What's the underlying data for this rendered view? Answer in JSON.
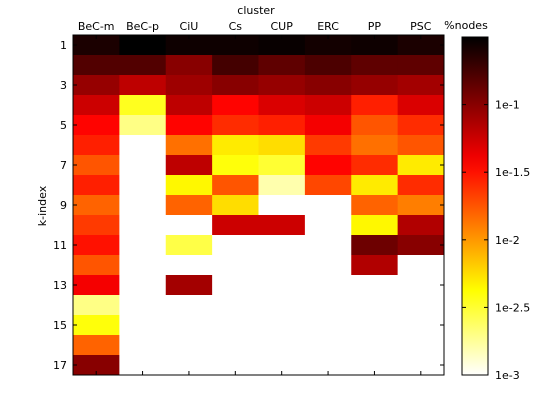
{
  "chart_data": {
    "type": "heatmap",
    "title": "cluster",
    "xlabel": "",
    "ylabel": "k-index",
    "colorbar_label": "%nodes",
    "categories": [
      "BeC-m",
      "BeC-p",
      "CiU",
      "Cs",
      "CUP",
      "ERC",
      "PP",
      "PSC"
    ],
    "y_rows": [
      1,
      2,
      3,
      4,
      5,
      6,
      7,
      8,
      9,
      10,
      11,
      12,
      13,
      14,
      15,
      16,
      17
    ],
    "y_tick_labels": [
      "1",
      "3",
      "5",
      "7",
      "9",
      "11",
      "13",
      "15",
      "17"
    ],
    "colorbar_ticks": [
      "1e-3",
      "1e-2.5",
      "1e-2",
      "1e-1.5",
      "1e-1"
    ],
    "colorbar_range_log10": [
      -3,
      -0.5
    ],
    "colormap": "hot (reversed)",
    "missing_color": "#ffffff",
    "grid": false,
    "matrix_log10": [
      [
        -0.6,
        -0.5,
        -0.55,
        -0.55,
        -0.53,
        -0.57,
        -0.55,
        -0.6
      ],
      [
        -0.8,
        -0.8,
        -1.0,
        -0.75,
        -0.85,
        -0.78,
        -0.85,
        -0.85
      ],
      [
        -1.05,
        -1.2,
        -1.08,
        -1.0,
        -1.05,
        -1.0,
        -1.05,
        -1.1
      ],
      [
        -1.25,
        -2.45,
        -1.2,
        -1.45,
        -1.3,
        -1.25,
        -1.55,
        -1.3
      ],
      [
        -1.45,
        -2.7,
        -1.45,
        -1.6,
        -1.55,
        -1.4,
        -1.75,
        -1.6
      ],
      [
        -1.55,
        null,
        -1.85,
        -2.3,
        -2.25,
        -1.65,
        -1.85,
        -1.75
      ],
      [
        -1.75,
        null,
        -1.2,
        -2.4,
        -2.5,
        -1.45,
        -1.6,
        -2.3
      ],
      [
        -1.55,
        null,
        -2.35,
        -1.75,
        -2.8,
        -1.7,
        -2.3,
        -1.6
      ],
      [
        -1.8,
        null,
        -1.8,
        -2.25,
        null,
        null,
        -1.8,
        -1.9
      ],
      [
        -1.65,
        null,
        null,
        -1.25,
        -1.25,
        null,
        -2.35,
        -1.15
      ],
      [
        -1.5,
        null,
        -2.55,
        null,
        null,
        null,
        -0.9,
        -1.0
      ],
      [
        -1.75,
        null,
        null,
        null,
        null,
        null,
        -1.15,
        null
      ],
      [
        -1.4,
        null,
        -1.1,
        null,
        null,
        null,
        null,
        null
      ],
      [
        -2.7,
        null,
        null,
        null,
        null,
        null,
        null,
        null
      ],
      [
        -2.4,
        null,
        null,
        null,
        null,
        null,
        null,
        null
      ],
      [
        -1.8,
        null,
        null,
        null,
        null,
        null,
        null,
        null
      ],
      [
        -1.0,
        null,
        null,
        null,
        null,
        null,
        null,
        null
      ]
    ]
  }
}
